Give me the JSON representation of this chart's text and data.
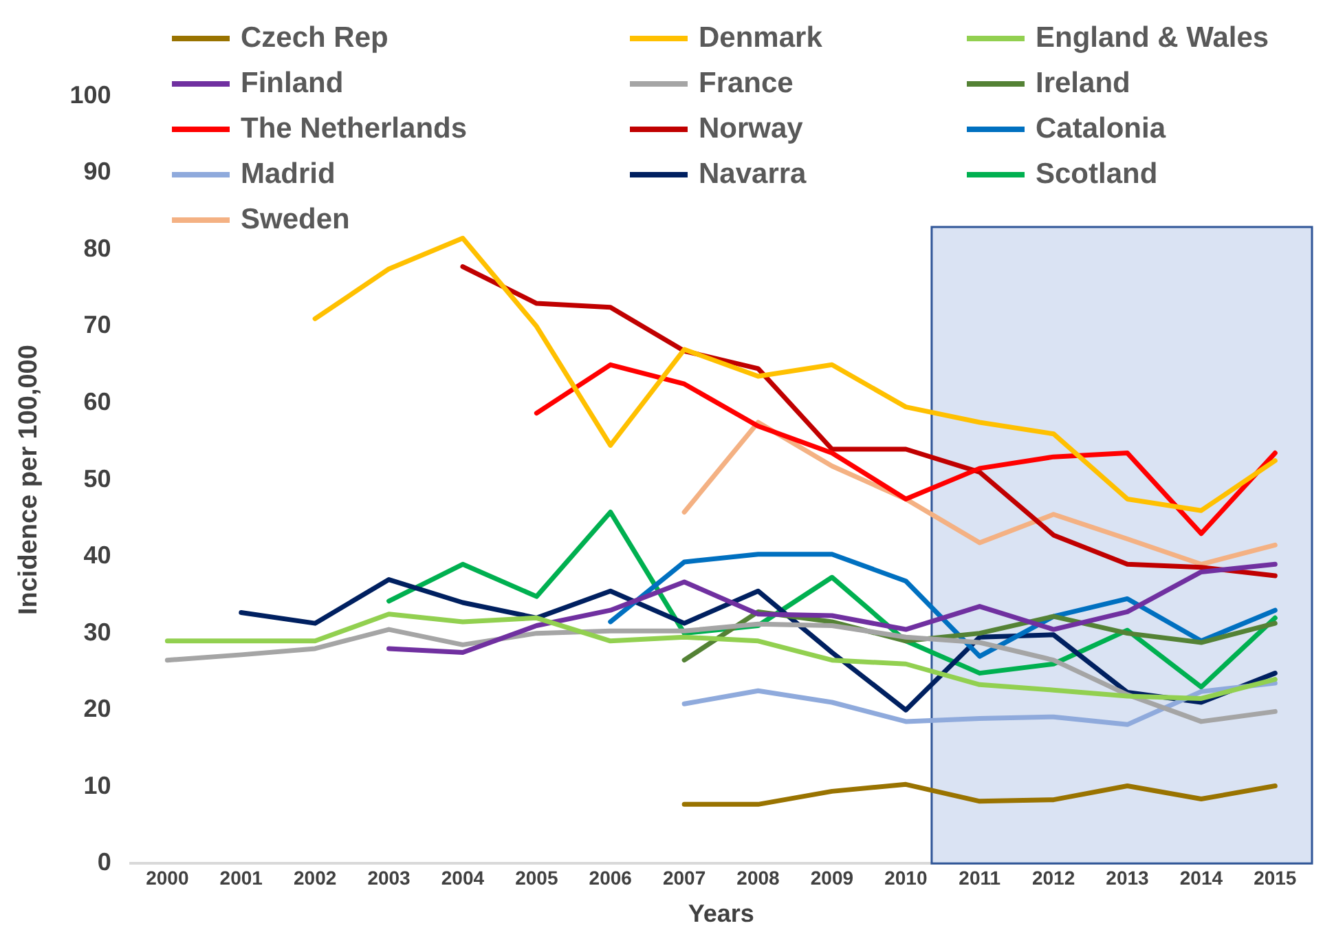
{
  "chart_data": {
    "type": "line",
    "xlabel": "Years",
    "ylabel": "Incidence per 100,000",
    "xlim": [
      1999.5,
      2015.5
    ],
    "xticks": [
      2000,
      2001,
      2002,
      2003,
      2004,
      2005,
      2006,
      2007,
      2008,
      2009,
      2010,
      2011,
      2012,
      2013,
      2014,
      2015
    ],
    "ylim": [
      0,
      100
    ],
    "yticks": [
      0,
      10,
      20,
      30,
      40,
      50,
      60,
      70,
      80,
      90,
      100
    ],
    "grid": false,
    "legend": "top",
    "marker": "none",
    "line_style": "solid",
    "bands": [
      {
        "axis": "x",
        "from": 2010.35,
        "to": 2015.5,
        "color": "#dae3f3"
      }
    ],
    "series": [
      {
        "name": "Czech Rep",
        "color": "#997300",
        "x": [
          2007,
          2008,
          2009,
          2010,
          2011,
          2012,
          2013,
          2014,
          2015
        ],
        "values": [
          7.7,
          7.7,
          9.4,
          10.3,
          8.1,
          8.3,
          10.1,
          8.4,
          10.1
        ]
      },
      {
        "name": "Denmark",
        "color": "#ffc000",
        "x": [
          2002,
          2003,
          2004,
          2005,
          2006,
          2007,
          2008,
          2009,
          2010,
          2011,
          2012,
          2013,
          2014,
          2015
        ],
        "values": [
          71,
          77.5,
          81.5,
          70,
          54.5,
          67,
          63.5,
          65,
          59.5,
          57.5,
          56,
          47.5,
          46,
          52.5
        ]
      },
      {
        "name": "England & Wales",
        "color": "#92d050",
        "x": [
          2000,
          2001,
          2002,
          2003,
          2004,
          2005,
          2006,
          2007,
          2008,
          2009,
          2010,
          2011,
          2012,
          2013,
          2014,
          2015
        ],
        "values": [
          29,
          29,
          29,
          32.5,
          31.5,
          32,
          29,
          29.5,
          29,
          26.5,
          26,
          23.3,
          22.6,
          21.8,
          21.5,
          24
        ]
      },
      {
        "name": "Finland",
        "color": "#7030a0",
        "x": [
          2003,
          2004,
          2005,
          2006,
          2007,
          2008,
          2009,
          2010,
          2011,
          2012,
          2013,
          2014,
          2015
        ],
        "values": [
          28,
          27.5,
          31,
          33,
          36.7,
          32.5,
          32.3,
          30.5,
          33.5,
          30.5,
          32.8,
          38,
          39
        ]
      },
      {
        "name": "France",
        "color": "#a5a5a5",
        "x": [
          2000,
          2001,
          2002,
          2003,
          2004,
          2005,
          2006,
          2007,
          2008,
          2009,
          2010,
          2011,
          2012,
          2013,
          2014,
          2015
        ],
        "values": [
          26.5,
          27.2,
          28,
          30.5,
          28.5,
          30,
          30.3,
          30.3,
          31.2,
          31,
          29.5,
          28.8,
          26.5,
          22,
          18.5,
          19.8
        ]
      },
      {
        "name": "Ireland",
        "color": "#548235",
        "x": [
          2007,
          2008,
          2009,
          2010,
          2011,
          2012,
          2013,
          2014,
          2015
        ],
        "values": [
          26.5,
          32.8,
          31.5,
          29,
          30,
          32.2,
          30,
          28.8,
          31.3
        ]
      },
      {
        "name": "The Netherlands",
        "color": "#ff0000",
        "x": [
          2005,
          2006,
          2007,
          2008,
          2009,
          2010,
          2011,
          2012,
          2013,
          2014,
          2015
        ],
        "values": [
          58.7,
          65,
          62.5,
          57,
          53.5,
          47.5,
          51.5,
          53,
          53.5,
          43,
          53.5
        ]
      },
      {
        "name": "Norway",
        "color": "#c00000",
        "x": [
          2004,
          2005,
          2006,
          2007,
          2008,
          2009,
          2010,
          2011,
          2012,
          2013,
          2014,
          2015
        ],
        "values": [
          77.8,
          73,
          72.5,
          66.8,
          64.5,
          54,
          54,
          51,
          42.8,
          39,
          38.6,
          37.5
        ]
      },
      {
        "name": "Catalonia",
        "color": "#0070c0",
        "x": [
          2006,
          2007,
          2008,
          2009,
          2010,
          2011,
          2012,
          2013,
          2014,
          2015
        ],
        "values": [
          31.5,
          39.3,
          40.3,
          40.3,
          36.8,
          27,
          32.2,
          34.5,
          29,
          33
        ]
      },
      {
        "name": "Madrid",
        "color": "#8faadc",
        "x": [
          2007,
          2008,
          2009,
          2010,
          2011,
          2012,
          2013,
          2014,
          2015
        ],
        "values": [
          20.8,
          22.5,
          21,
          18.5,
          18.9,
          19.1,
          18.1,
          22.4,
          23.5
        ]
      },
      {
        "name": "Navarra",
        "color": "#002060",
        "x": [
          2001,
          2002,
          2003,
          2004,
          2005,
          2006,
          2007,
          2008,
          2009,
          2010,
          2011,
          2012,
          2013,
          2014,
          2015
        ],
        "values": [
          32.7,
          31.3,
          37,
          34,
          32,
          35.5,
          31.3,
          35.5,
          27.5,
          20,
          29.5,
          29.8,
          22.3,
          21,
          24.8
        ]
      },
      {
        "name": "Scotland",
        "color": "#00b050",
        "x": [
          2003,
          2004,
          2005,
          2006,
          2007,
          2008,
          2009,
          2010,
          2011,
          2012,
          2013,
          2014,
          2015
        ],
        "values": [
          34.2,
          39,
          34.8,
          45.8,
          30,
          31,
          37.3,
          29,
          24.8,
          26,
          30.4,
          23,
          32
        ]
      },
      {
        "name": "Sweden",
        "color": "#f4b183",
        "x": [
          2007,
          2008,
          2009,
          2010,
          2011,
          2012,
          2013,
          2014,
          2015
        ],
        "values": [
          45.8,
          57.5,
          51.8,
          47.5,
          41.8,
          45.5,
          42.3,
          39,
          41.5
        ]
      }
    ]
  }
}
